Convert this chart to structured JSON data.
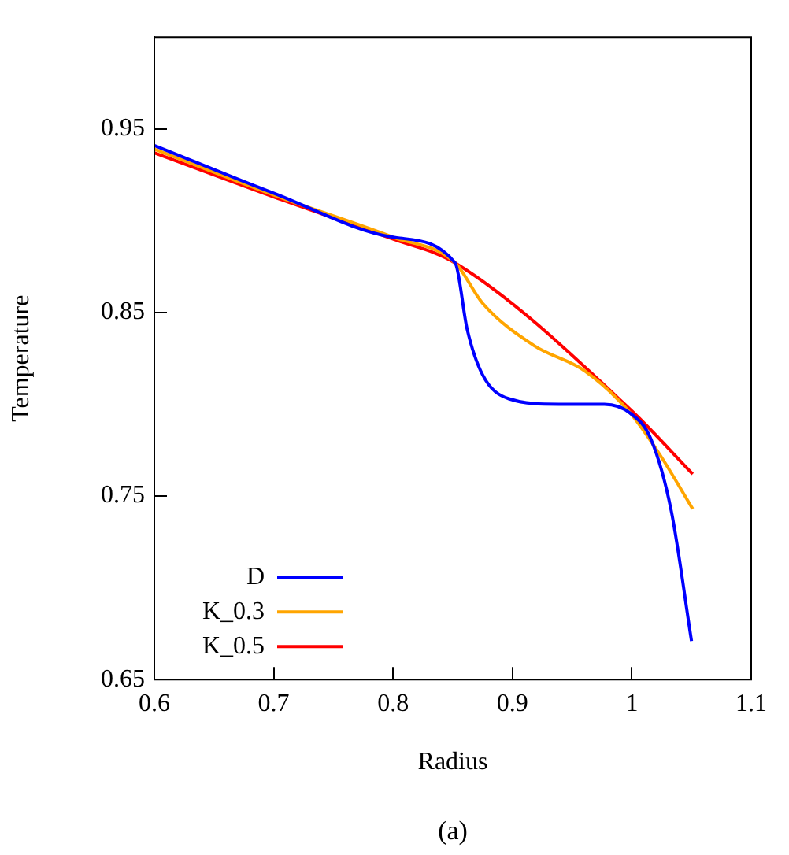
{
  "chart_data": {
    "type": "line",
    "xlabel": "Radius",
    "ylabel": "Temperature",
    "annotations": [
      "(a)"
    ],
    "xlim": [
      0.6,
      1.1
    ],
    "xticks": [
      0.6,
      0.7,
      0.8,
      0.9,
      1,
      1.1
    ],
    "ylim": [
      0.65,
      1.0
    ],
    "yticks": [
      0.65,
      0.75,
      0.85,
      0.95
    ],
    "grid": false,
    "legend": "bottom left",
    "marker": "none",
    "line_style": "solid",
    "series": [
      {
        "name": "D",
        "color": "#0000ff",
        "x": [
          0.6,
          0.7,
          0.8,
          0.852,
          0.862,
          0.875,
          0.897,
          0.939,
          0.977,
          0.999,
          1.016,
          1.033,
          1.05
        ],
        "values": [
          0.941,
          0.915,
          0.891,
          0.877,
          0.841,
          0.816,
          0.803,
          0.8,
          0.8,
          0.795,
          0.781,
          0.742,
          0.671
        ]
      },
      {
        "name": "K_0.3",
        "color": "#ffa500",
        "x": [
          0.6,
          0.7,
          0.8,
          0.852,
          0.875,
          0.918,
          0.961,
          0.999,
          1.024,
          1.051
        ],
        "values": [
          0.939,
          0.914,
          0.891,
          0.877,
          0.855,
          0.832,
          0.818,
          0.795,
          0.772,
          0.743
        ]
      },
      {
        "name": "K_0.5",
        "color": "#ff0000",
        "x": [
          0.6,
          0.7,
          0.8,
          0.852,
          0.999,
          1.051
        ],
        "values": [
          0.937,
          0.913,
          0.89,
          0.877,
          0.797,
          0.762
        ]
      }
    ]
  }
}
